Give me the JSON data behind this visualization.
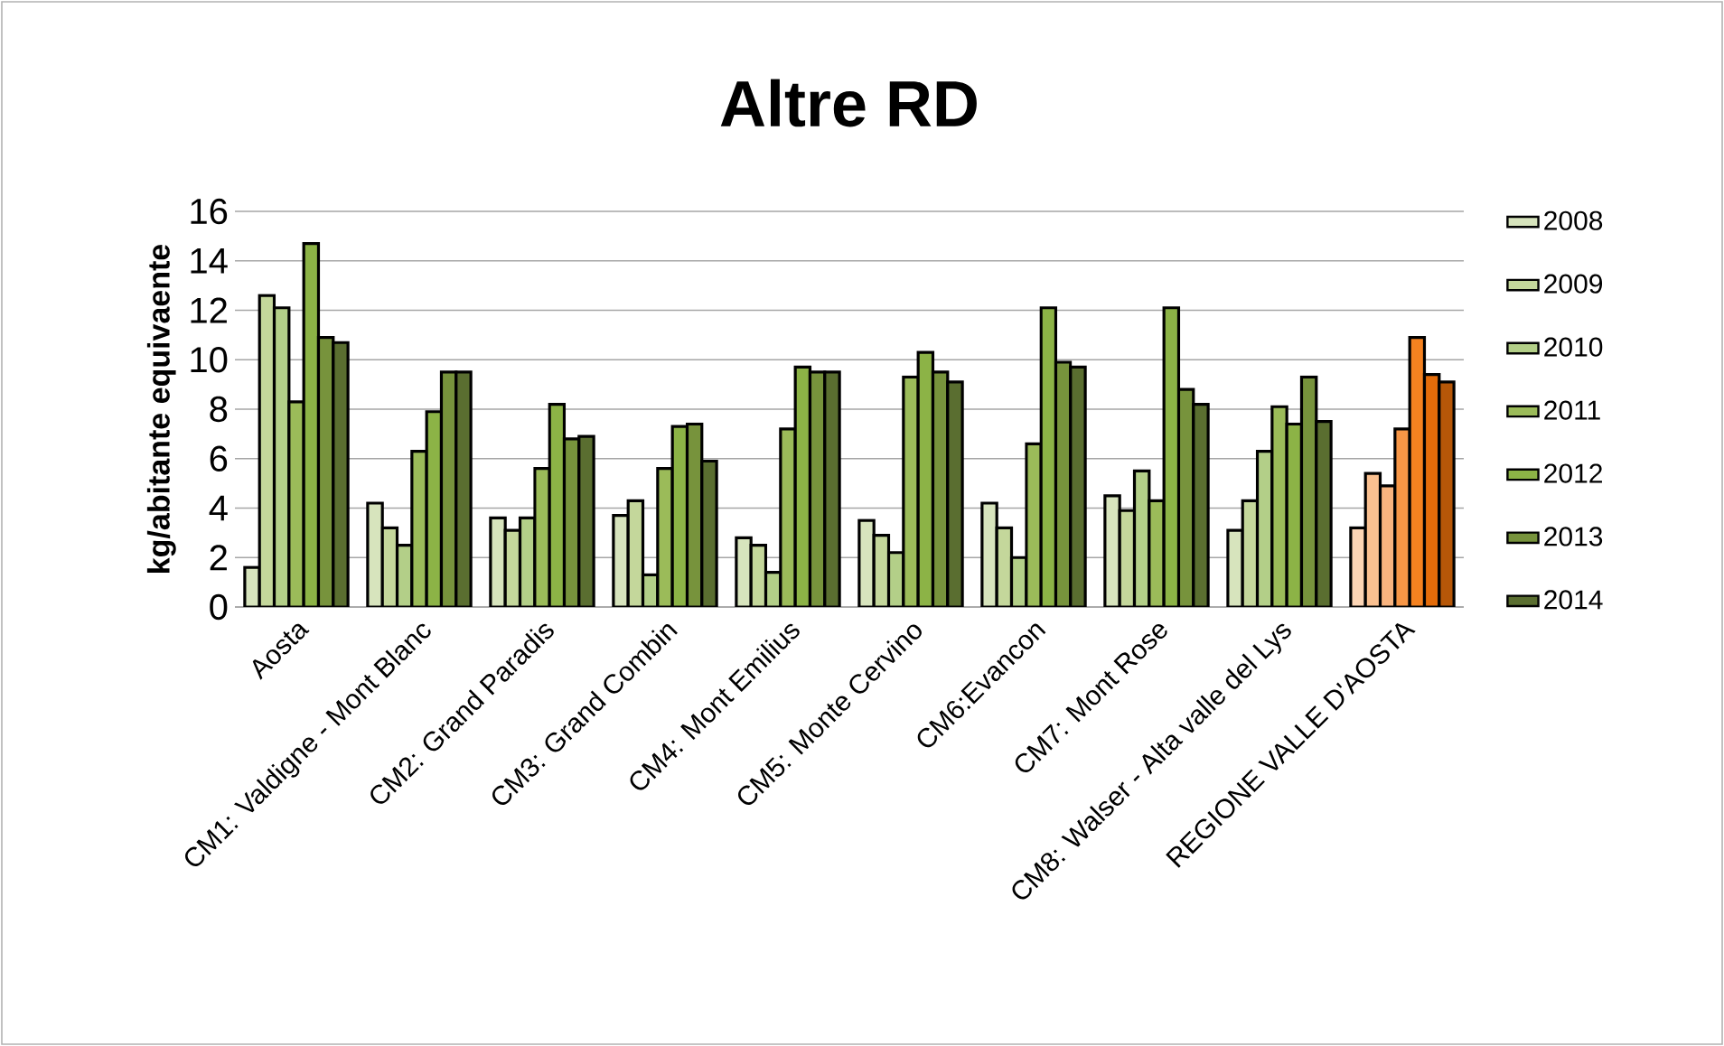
{
  "chart_data": {
    "type": "bar",
    "title": "Altre RD",
    "ylabel": "kg/abitante equivaente",
    "categories": [
      "Aosta",
      "CM1: Valdigne - Mont Blanc",
      "CM2: Grand Paradis",
      "CM3: Grand Combin",
      "CM4: Mont Emilius",
      "CM5: Monte Cervino",
      "CM6:Evancon",
      "CM7: Mont Rose",
      "CM8: Walser - Alta valle del Lys",
      "REGIONE VALLE D'AOSTA"
    ],
    "series": [
      {
        "name": "2008",
        "color": "#d7e4bd",
        "colors": [
          "#d7e4bd",
          "#d7e4bd",
          "#d7e4bd",
          "#d7e4bd",
          "#d7e4bd",
          "#d7e4bd",
          "#d7e4bd",
          "#d7e4bd",
          "#d7e4bd",
          "#fcd5b5"
        ],
        "values": [
          1.6,
          4.2,
          3.6,
          3.7,
          2.8,
          3.5,
          4.2,
          4.5,
          3.1,
          3.2
        ]
      },
      {
        "name": "2009",
        "color": "#c4d79b",
        "colors": [
          "#c4d79b",
          "#c4d79b",
          "#c4d79b",
          "#c4d79b",
          "#c4d79b",
          "#c4d79b",
          "#c4d79b",
          "#c4d79b",
          "#c4d79b",
          "#fac090"
        ],
        "values": [
          12.6,
          3.2,
          3.1,
          4.3,
          2.5,
          2.9,
          3.2,
          3.9,
          4.3,
          5.4
        ]
      },
      {
        "name": "2010",
        "color": "#b3cf88",
        "colors": [
          "#b3cf88",
          "#b3cf88",
          "#b3cf88",
          "#b3cf88",
          "#b3cf88",
          "#b3cf88",
          "#b3cf88",
          "#b3cf88",
          "#b3cf88",
          "#f9b47f"
        ],
        "values": [
          12.1,
          2.5,
          3.6,
          1.3,
          1.4,
          2.2,
          2.0,
          5.5,
          6.3,
          4.9
        ]
      },
      {
        "name": "2011",
        "color": "#9bbb59",
        "colors": [
          "#9bbb59",
          "#9bbb59",
          "#9bbb59",
          "#9bbb59",
          "#9bbb59",
          "#9bbb59",
          "#9bbb59",
          "#9bbb59",
          "#9bbb59",
          "#f79646"
        ],
        "values": [
          8.3,
          6.3,
          5.6,
          5.6,
          7.2,
          9.3,
          6.6,
          4.3,
          8.1,
          7.2
        ]
      },
      {
        "name": "2012",
        "color": "#8cb346",
        "colors": [
          "#8cb346",
          "#8cb346",
          "#8cb346",
          "#8cb346",
          "#8cb346",
          "#8cb346",
          "#8cb346",
          "#8cb346",
          "#8cb346",
          "#f58220"
        ],
        "values": [
          14.7,
          7.9,
          8.2,
          7.3,
          9.7,
          10.3,
          12.1,
          12.1,
          7.4,
          10.9
        ]
      },
      {
        "name": "2013",
        "color": "#77933c",
        "colors": [
          "#77933c",
          "#77933c",
          "#77933c",
          "#77933c",
          "#77933c",
          "#77933c",
          "#77933c",
          "#77933c",
          "#77933c",
          "#e46c0a"
        ],
        "values": [
          10.9,
          9.5,
          6.8,
          7.4,
          9.5,
          9.5,
          9.9,
          8.8,
          9.3,
          9.4
        ]
      },
      {
        "name": "2014",
        "color": "#5a6e30",
        "colors": [
          "#5a6e30",
          "#5a6e30",
          "#5a6e30",
          "#5a6e30",
          "#5a6e30",
          "#5a6e30",
          "#5a6e30",
          "#5a6e30",
          "#5a6e30",
          "#b65708"
        ],
        "values": [
          10.7,
          9.5,
          6.9,
          5.9,
          9.5,
          9.1,
          9.7,
          8.2,
          7.5,
          9.1
        ]
      }
    ],
    "ylim": [
      0,
      16
    ],
    "yticks": [
      0,
      2,
      4,
      6,
      8,
      10,
      12,
      14,
      16
    ],
    "grid": "y",
    "legend": "right"
  }
}
